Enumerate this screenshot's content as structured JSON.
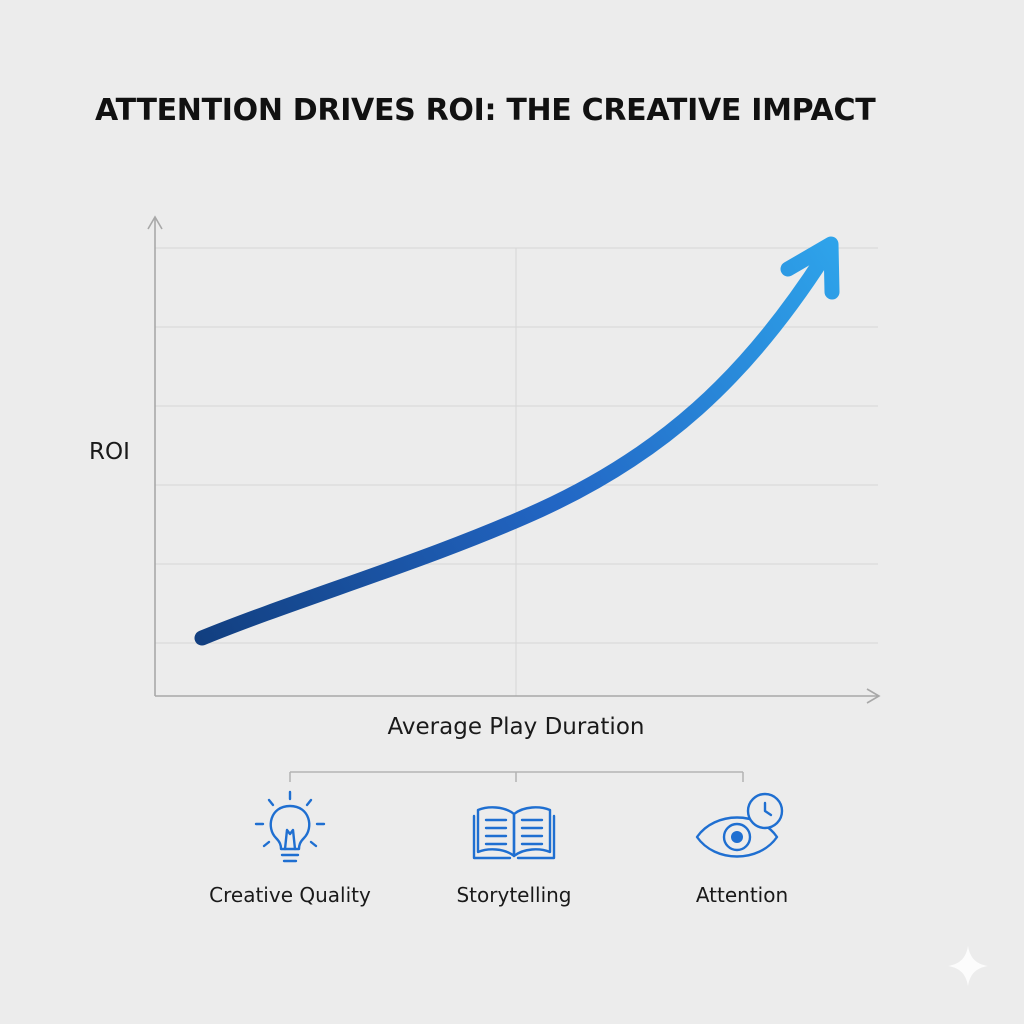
{
  "chart_data": {
    "type": "line",
    "title": "ATTENTION DRIVES ROI: THE CREATIVE IMPACT",
    "xlabel": "Average Play Duration",
    "ylabel": "ROI",
    "grid": true,
    "legend": "none",
    "trend": "rising, accelerating (arrow)",
    "colors": {
      "line_start": "#123f80",
      "line_mid": "#2266c4",
      "line_end": "#2ea3ea",
      "icon": "#1f6fd1",
      "background": "#ececec"
    }
  },
  "factors": [
    {
      "label": "Creative Quality",
      "icon": "lightbulb-icon"
    },
    {
      "label": "Storytelling",
      "icon": "open-book-icon"
    },
    {
      "label": "Attention",
      "icon": "eye-clock-icon"
    }
  ]
}
